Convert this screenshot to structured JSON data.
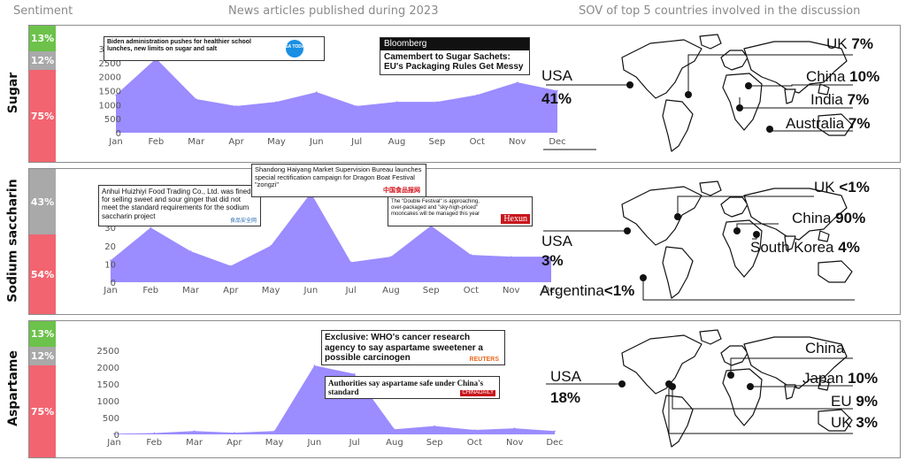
{
  "headers": {
    "sentiment": "Sentiment",
    "news": "News articles published during 2023",
    "sov": "SOV of top 5 countries involved in the discussion"
  },
  "colors": {
    "area": "#9b8cff",
    "positive": "#6cc24a",
    "neutral": "#a9a9a9",
    "negative": "#f26470"
  },
  "rows": [
    {
      "name": "Sugar",
      "sentiment": {
        "positive": "13%",
        "neutral": "12%",
        "negative": "75%"
      },
      "news": [
        {
          "headline": "Biden administration pushes for healthier school lunches, new limits on sugar and salt",
          "source": "USA TODAY"
        },
        {
          "source": "Bloomberg",
          "headline": "Camembert to Sugar Sachets: EU's Packaging Rules Get Messy"
        }
      ],
      "countries": [
        {
          "name": "UK",
          "value": "7%"
        },
        {
          "name": "USA",
          "value": "41%"
        },
        {
          "name": "China",
          "value": "10%"
        },
        {
          "name": "India",
          "value": "7%"
        },
        {
          "name": "Australia",
          "value": "7%"
        }
      ]
    },
    {
      "name": "Sodium saccharin",
      "sentiment": {
        "positive": "",
        "neutral": "43%",
        "negative": "54%"
      },
      "news": [
        {
          "headline": "Anhui Huizhiyi Food Trading Co., Ltd. was fined for selling sweet and sour ginger that did not meet the standard requirements for the sodium saccharin project",
          "source": "食品安全网"
        },
        {
          "headline": "Shandong Haiyang Market Supervision Bureau launches special rectification campaign for Dragon Boat Festival \"zongzi\"",
          "source": "中国食品报网"
        },
        {
          "headline": "The \"Double Festival\" is approaching, over-packaged and \"sky-high-priced\" mooncakes will be managed this year",
          "source": "Hexun"
        }
      ],
      "countries": [
        {
          "name": "UK",
          "value": "<1%"
        },
        {
          "name": "China",
          "value": "90%"
        },
        {
          "name": "USA",
          "value": "3%"
        },
        {
          "name": "South Korea",
          "value": "4%"
        },
        {
          "name": "Argentina",
          "value": "<1%"
        }
      ]
    },
    {
      "name": "Aspartame",
      "sentiment": {
        "positive": "13%",
        "neutral": "12%",
        "negative": "75%"
      },
      "news": [
        {
          "headline": "Exclusive: WHO's cancer research agency to say aspartame sweetener a possible carcinogen",
          "source": "REUTERS"
        },
        {
          "headline": "Authorities say aspartame safe under China's standard",
          "source": "CHINADAILY"
        }
      ],
      "countries": [
        {
          "name": "China",
          "value": ""
        },
        {
          "name": "USA",
          "value": "18%"
        },
        {
          "name": "Japan",
          "value": "10%"
        },
        {
          "name": "EU",
          "value": "9%"
        },
        {
          "name": "UK",
          "value": "3%"
        }
      ]
    }
  ],
  "chart_data": [
    {
      "type": "area",
      "categories": [
        "Jan",
        "Feb",
        "Mar",
        "Apr",
        "May",
        "Jun",
        "Jul",
        "Aug",
        "Sep",
        "Oct",
        "Nov",
        "Dec"
      ],
      "values": [
        1350,
        2650,
        1200,
        950,
        1100,
        1450,
        950,
        1100,
        1100,
        1350,
        1800,
        1500
      ],
      "yticks": [
        0,
        500,
        1000,
        1500,
        2000,
        2500,
        3000
      ],
      "ylim": [
        0,
        3000
      ],
      "grid": false
    },
    {
      "type": "area",
      "categories": [
        "Jan",
        "Feb",
        "Mar",
        "Apr",
        "May",
        "Jun",
        "Jul",
        "Aug",
        "Sep",
        "Oct",
        "Nov",
        "Dec"
      ],
      "values": [
        12,
        30,
        17,
        9,
        20,
        49,
        11,
        14,
        31,
        15,
        14,
        14
      ],
      "yticks": [
        0,
        10,
        20,
        30,
        40,
        50
      ],
      "ylim": [
        0,
        50
      ],
      "grid": false
    },
    {
      "type": "area",
      "categories": [
        "Jan",
        "Feb",
        "Mar",
        "Apr",
        "May",
        "Jun",
        "Jul",
        "Aug",
        "Sep",
        "Oct",
        "Nov",
        "Dec"
      ],
      "values": [
        20,
        40,
        100,
        50,
        100,
        2050,
        1800,
        150,
        250,
        130,
        180,
        100
      ],
      "yticks": [
        0,
        500,
        1000,
        1500,
        2000,
        2500
      ],
      "ylim": [
        0,
        2500
      ],
      "grid": false
    }
  ]
}
